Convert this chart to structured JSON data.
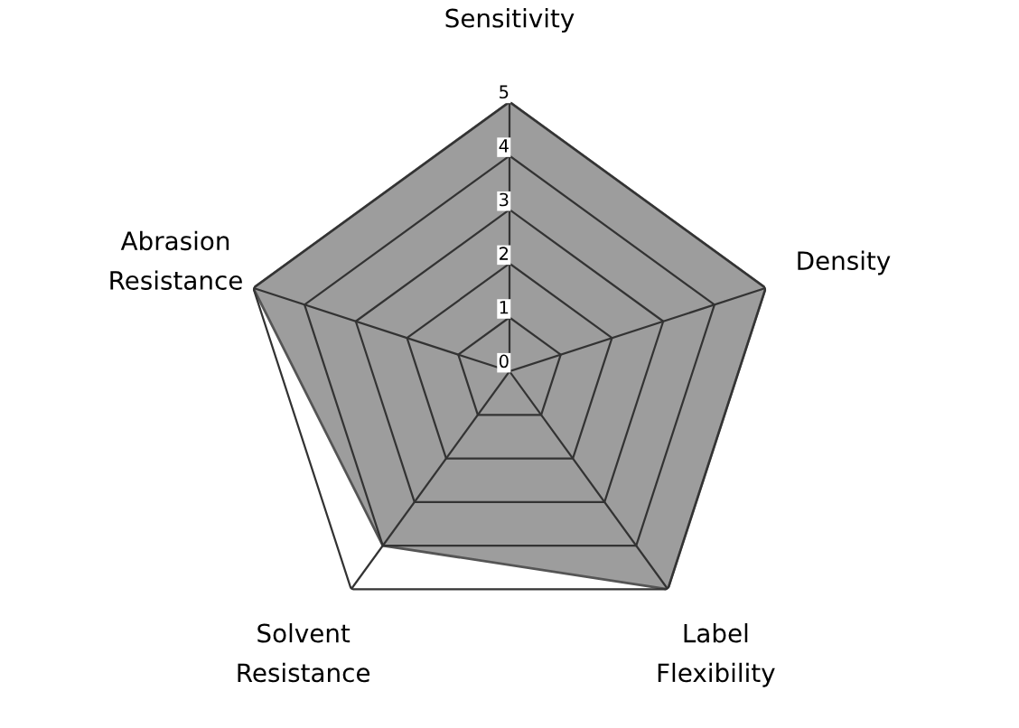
{
  "chart_data": {
    "type": "radar",
    "categories": [
      "Sensitivity",
      "Density",
      "Label\nFlexibility",
      "Solvent\nResistance",
      "Abrasion\nResistance"
    ],
    "series": [
      {
        "color": "#8c8c8c",
        "values": [
          5,
          5,
          5,
          4,
          5
        ]
      }
    ],
    "ylim": [
      0,
      5
    ],
    "yticks": [
      0,
      1,
      2,
      3,
      4,
      5
    ],
    "grid": true,
    "legend": false
  }
}
